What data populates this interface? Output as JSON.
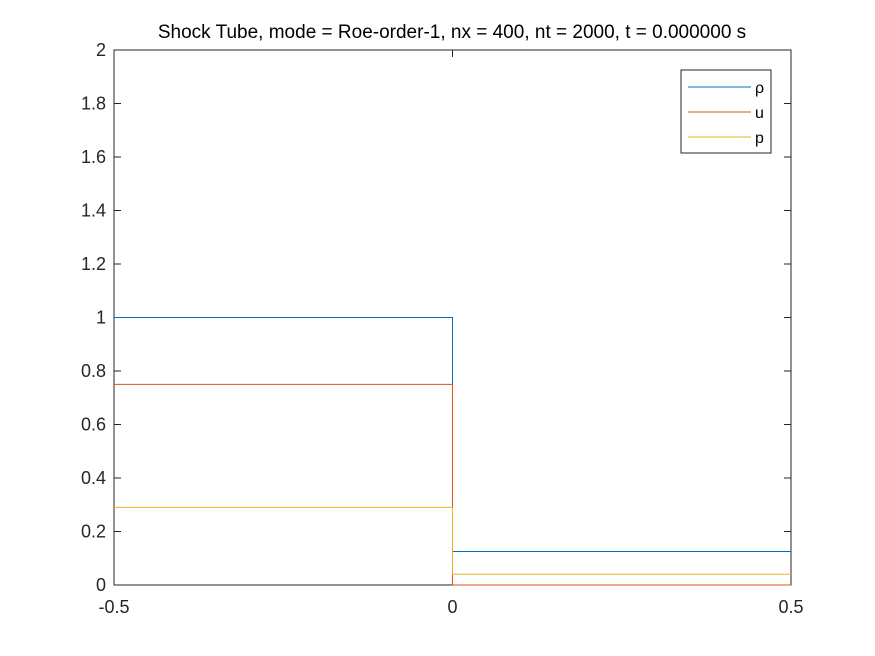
{
  "chart_data": {
    "type": "line",
    "title": "Shock Tube, mode = Roe-order-1, nx = 400, nt = 2000, t = 0.000000 s",
    "xlabel": "",
    "ylabel": "",
    "xlim": [
      -0.5,
      0.5
    ],
    "ylim": [
      0,
      2
    ],
    "xticks": [
      -0.5,
      0,
      0.5
    ],
    "xtick_labels": [
      "-0.5",
      "0",
      "0.5"
    ],
    "yticks": [
      0,
      0.2,
      0.4,
      0.6,
      0.8,
      1,
      1.2,
      1.4,
      1.6,
      1.8,
      2
    ],
    "ytick_labels": [
      "0",
      "0.2",
      "0.4",
      "0.6",
      "0.8",
      "1",
      "1.2",
      "1.4",
      "1.6",
      "1.8",
      "2"
    ],
    "grid": false,
    "legend_position": "top-right",
    "series": [
      {
        "name": "ρ",
        "color": "#0072BD",
        "x": [
          -0.5,
          0.0,
          0.0,
          0.5
        ],
        "y": [
          1.0,
          1.0,
          0.125,
          0.125
        ]
      },
      {
        "name": "u",
        "color": "#D95319",
        "x": [
          -0.5,
          0.0,
          0.0,
          0.5
        ],
        "y": [
          0.75,
          0.75,
          0.0,
          0.0
        ]
      },
      {
        "name": "p",
        "color": "#EDB120",
        "x": [
          -0.5,
          0.0,
          0.0,
          0.5
        ],
        "y": [
          0.29,
          0.29,
          0.04,
          0.04
        ]
      }
    ]
  }
}
